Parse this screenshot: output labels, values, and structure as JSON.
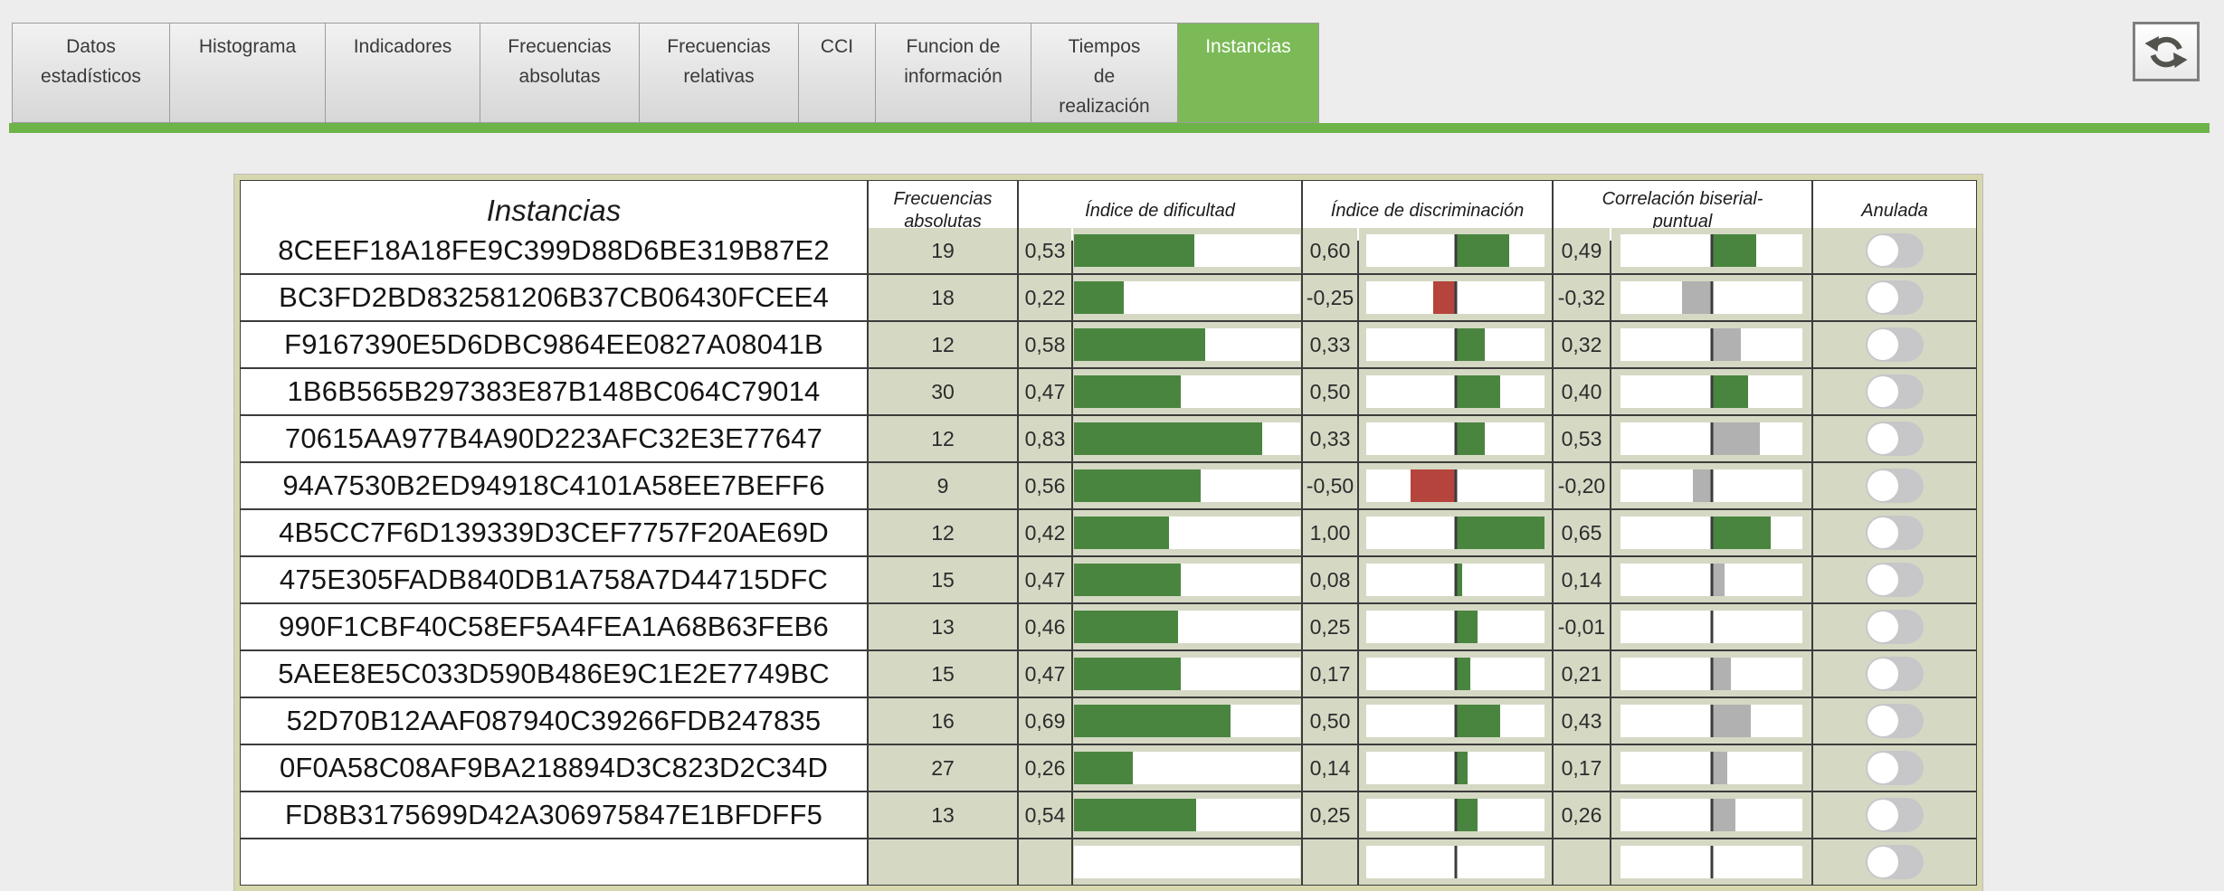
{
  "tabs": {
    "items": [
      {
        "label": "Datos\nestadísticos",
        "active": false
      },
      {
        "label": "Histograma",
        "active": false
      },
      {
        "label": "Indicadores",
        "active": false
      },
      {
        "label": "Frecuencias\nabsolutas",
        "active": false
      },
      {
        "label": "Frecuencias\nrelativas",
        "active": false
      },
      {
        "label": "CCI",
        "active": false
      },
      {
        "label": "Funcion de\ninformación",
        "active": false
      },
      {
        "label": "Tiempos\nde\nrealización",
        "active": false
      },
      {
        "label": "Instancias",
        "active": true
      }
    ]
  },
  "toolbar": {
    "refresh_icon": "circular-arrows-refresh"
  },
  "colors": {
    "green": "#4a8540",
    "red": "#b5443c",
    "gray": "#b1b1b1",
    "active_tab_green": "#7cba57",
    "underline_green": "#6cb348",
    "cell_sage": "#d5d9c4"
  },
  "table": {
    "headers": {
      "instancias": "Instancias",
      "frecuencias": "Frecuencias\nabsolutas",
      "dificultad": "Índice de dificultad",
      "discriminacion": "Índice de discriminación",
      "correlacion": "Correlación biserial-\npuntual",
      "anulada": "Anulada"
    },
    "rows": [
      {
        "id": "8CEEF18A18FE9C399D88D6BE319B87E2",
        "frecuencia": "19",
        "dificultad": "0,53",
        "discriminacion": "0,60",
        "discriminacion_color": "green",
        "correlacion": "0,49",
        "correlacion_color": "green",
        "anulada_on": false
      },
      {
        "id": "BC3FD2BD832581206B37CB06430FCEE4",
        "frecuencia": "18",
        "dificultad": "0,22",
        "discriminacion": "-0,25",
        "discriminacion_color": "red",
        "correlacion": "-0,32",
        "correlacion_color": "gray",
        "anulada_on": false
      },
      {
        "id": "F9167390E5D6DBC9864EE0827A08041B",
        "frecuencia": "12",
        "dificultad": "0,58",
        "discriminacion": "0,33",
        "discriminacion_color": "green",
        "correlacion": "0,32",
        "correlacion_color": "gray",
        "anulada_on": false
      },
      {
        "id": "1B6B565B297383E87B148BC064C79014",
        "frecuencia": "30",
        "dificultad": "0,47",
        "discriminacion": "0,50",
        "discriminacion_color": "green",
        "correlacion": "0,40",
        "correlacion_color": "green",
        "anulada_on": false
      },
      {
        "id": "70615AA977B4A90D223AFC32E3E77647",
        "frecuencia": "12",
        "dificultad": "0,83",
        "discriminacion": "0,33",
        "discriminacion_color": "green",
        "correlacion": "0,53",
        "correlacion_color": "gray",
        "anulada_on": false
      },
      {
        "id": "94A7530B2ED94918C4101A58EE7BEFF6",
        "frecuencia": "9",
        "dificultad": "0,56",
        "discriminacion": "-0,50",
        "discriminacion_color": "red",
        "correlacion": "-0,20",
        "correlacion_color": "gray",
        "anulada_on": false
      },
      {
        "id": "4B5CC7F6D139339D3CEF7757F20AE69D",
        "frecuencia": "12",
        "dificultad": "0,42",
        "discriminacion": "1,00",
        "discriminacion_color": "green",
        "correlacion": "0,65",
        "correlacion_color": "green",
        "anulada_on": false
      },
      {
        "id": "475E305FADB840DB1A758A7D44715DFC",
        "frecuencia": "15",
        "dificultad": "0,47",
        "discriminacion": "0,08",
        "discriminacion_color": "green",
        "correlacion": "0,14",
        "correlacion_color": "gray",
        "anulada_on": false
      },
      {
        "id": "990F1CBF40C58EF5A4FEA1A68B63FEB6",
        "frecuencia": "13",
        "dificultad": "0,46",
        "discriminacion": "0,25",
        "discriminacion_color": "green",
        "correlacion": "-0,01",
        "correlacion_color": "gray",
        "anulada_on": false
      },
      {
        "id": "5AEE8E5C033D590B486E9C1E2E7749BC",
        "frecuencia": "15",
        "dificultad": "0,47",
        "discriminacion": "0,17",
        "discriminacion_color": "green",
        "correlacion": "0,21",
        "correlacion_color": "gray",
        "anulada_on": false
      },
      {
        "id": "52D70B12AAF087940C39266FDB247835",
        "frecuencia": "16",
        "dificultad": "0,69",
        "discriminacion": "0,50",
        "discriminacion_color": "green",
        "correlacion": "0,43",
        "correlacion_color": "gray",
        "anulada_on": false
      },
      {
        "id": "0F0A58C08AF9BA218894D3C823D2C34D",
        "frecuencia": "27",
        "dificultad": "0,26",
        "discriminacion": "0,14",
        "discriminacion_color": "green",
        "correlacion": "0,17",
        "correlacion_color": "gray",
        "anulada_on": false
      },
      {
        "id": "FD8B3175699D42A306975847E1BFDFF5",
        "frecuencia": "13",
        "dificultad": "0,54",
        "discriminacion": "0,25",
        "discriminacion_color": "green",
        "correlacion": "0,26",
        "correlacion_color": "gray",
        "anulada_on": false
      }
    ],
    "partial_row_visible": true
  }
}
